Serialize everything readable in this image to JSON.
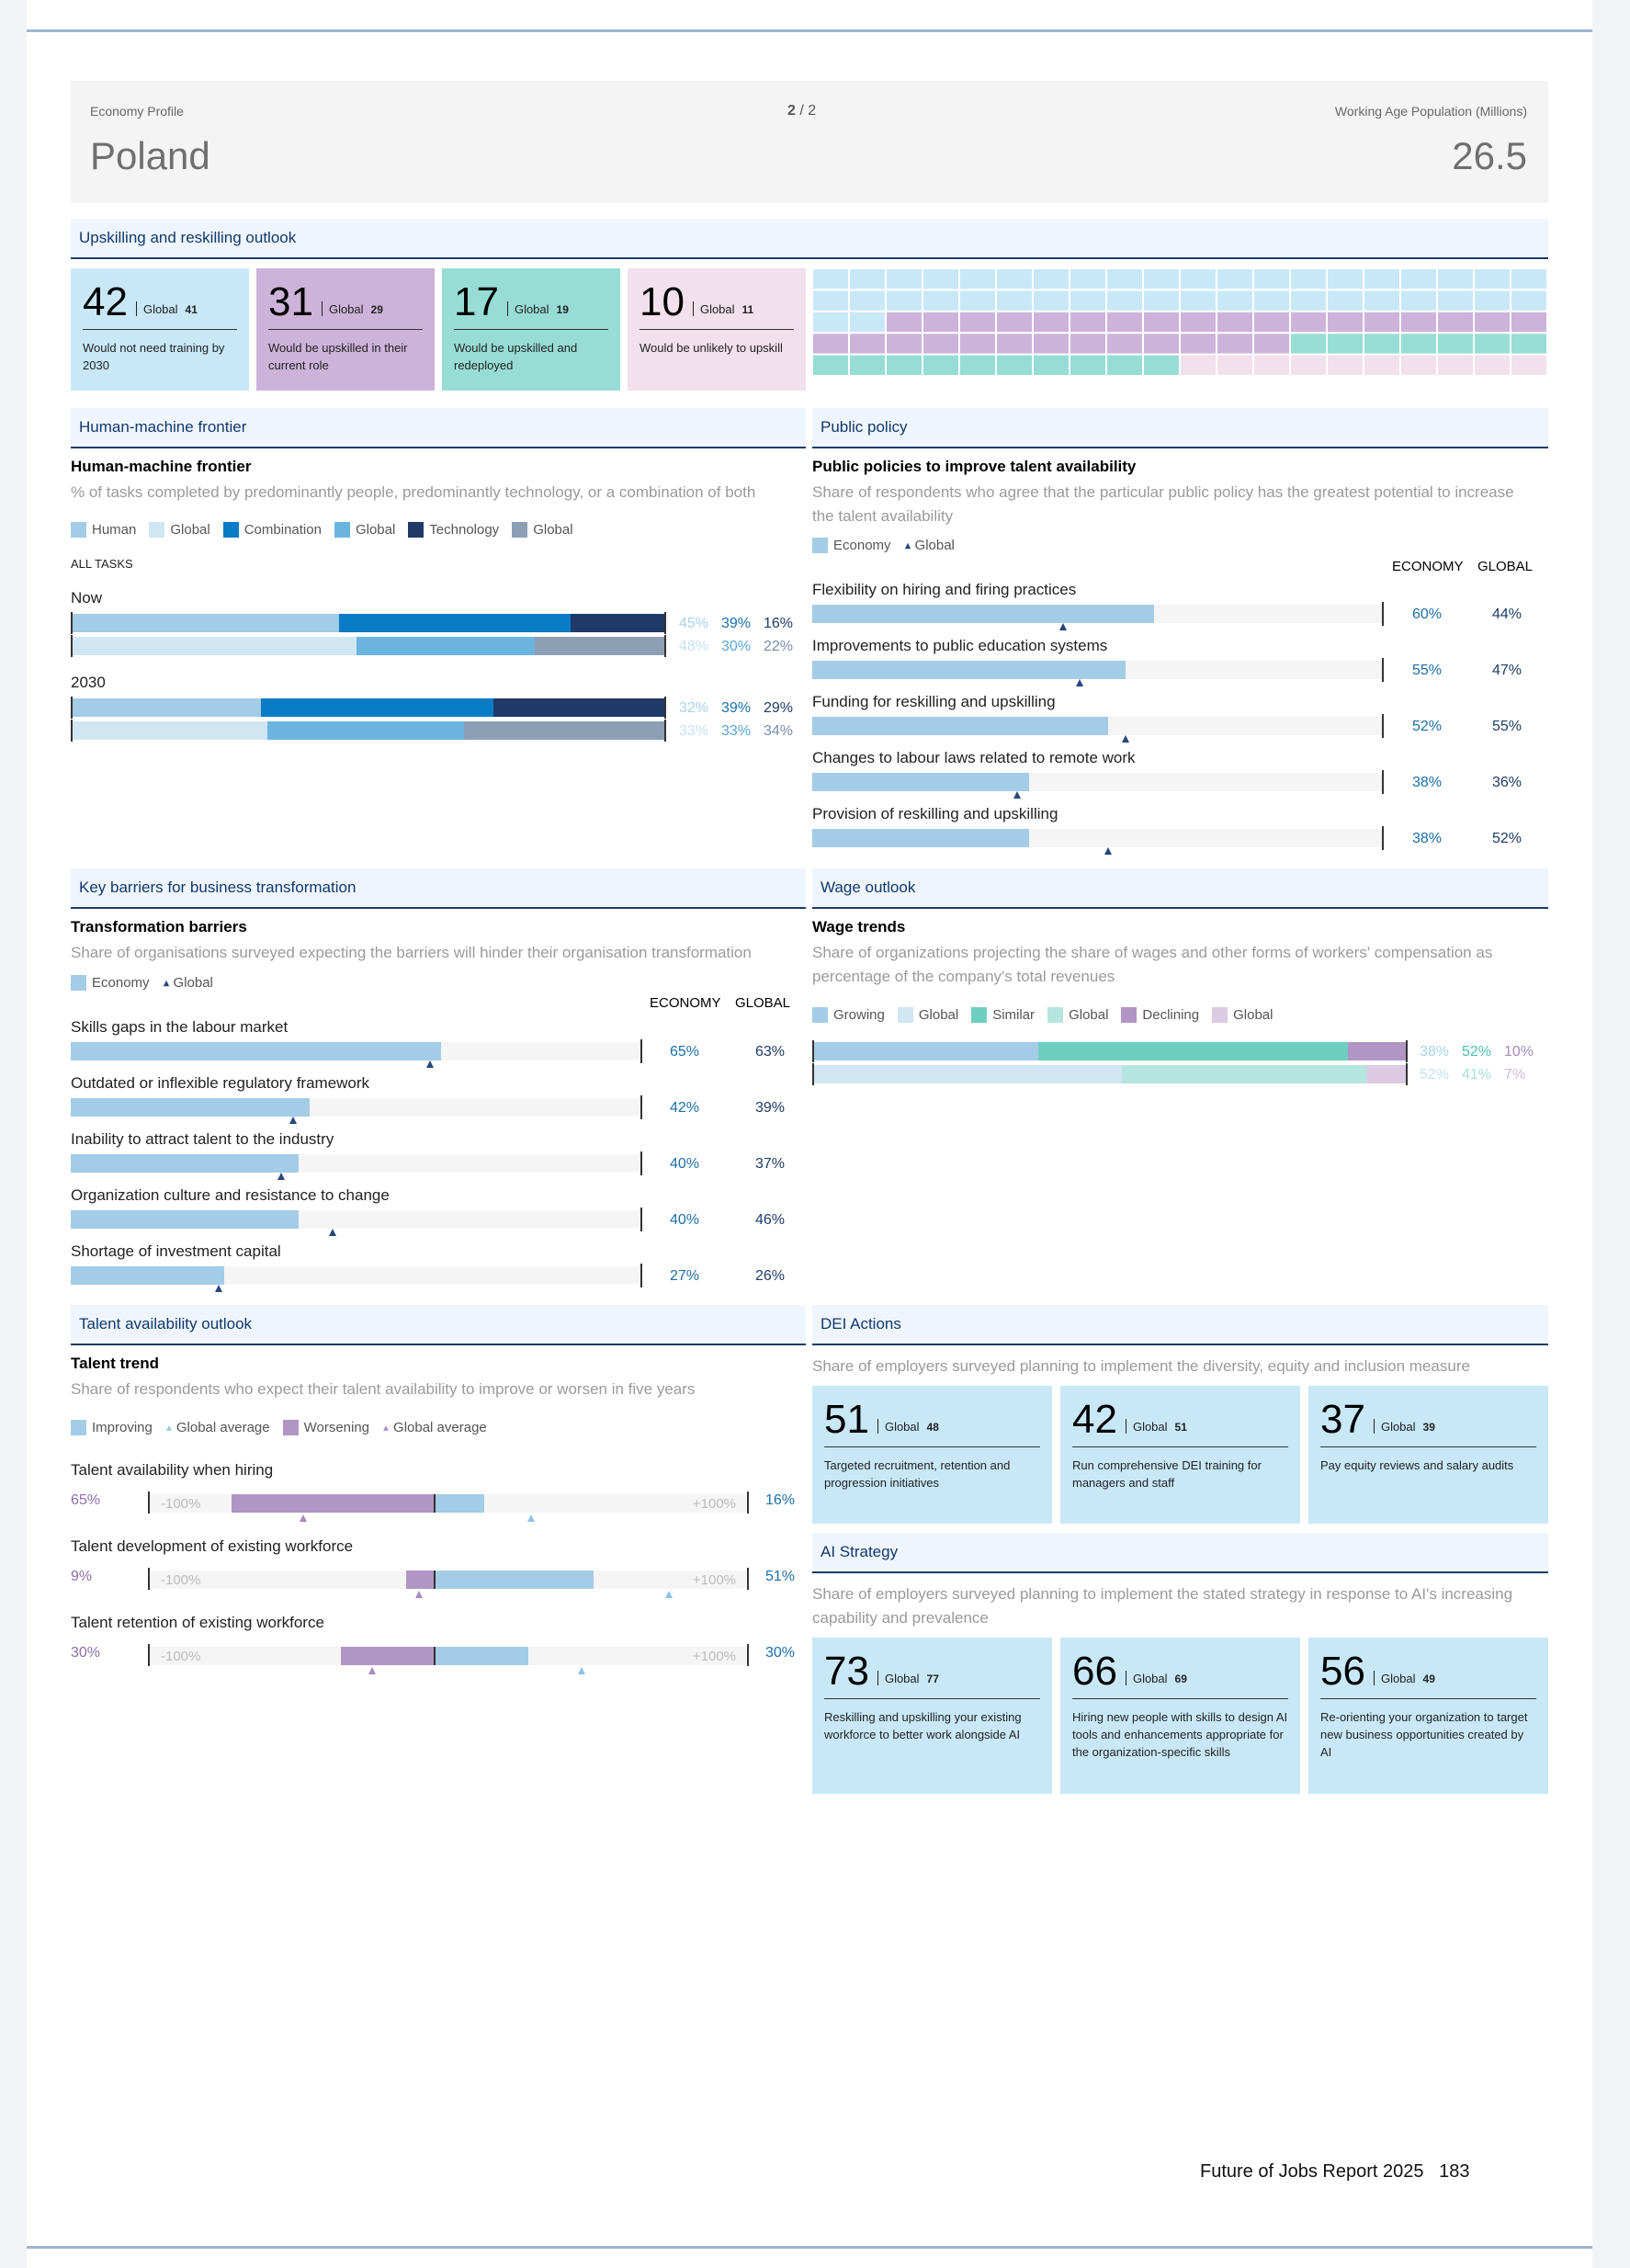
{
  "header": {
    "profile_label": "Economy Profile",
    "page_current": "2",
    "page_sep": "/",
    "page_total": "2",
    "country": "Poland",
    "pop_label": "Working Age Population (Millions)",
    "pop_value": "26.5"
  },
  "upskilling": {
    "title": "Upskilling and reskilling outlook",
    "cards": [
      {
        "value": "42",
        "global_label": "Global",
        "global_value": "41",
        "text": "Would not need training by 2030",
        "color": "#c8e8f8"
      },
      {
        "value": "31",
        "global_label": "Global",
        "global_value": "29",
        "text": "Would be upskilled in their current role",
        "color": "#cdb3da"
      },
      {
        "value": "17",
        "global_label": "Global",
        "global_value": "19",
        "text": "Would be upskilled and redeployed",
        "color": "#97ddd5"
      },
      {
        "value": "10",
        "global_label": "Global",
        "global_value": "11",
        "text": "Would be unlikely to upskill",
        "color": "#f2e0ec"
      }
    ]
  },
  "hmf": {
    "section": "Human-machine frontier",
    "title": "Human-machine frontier",
    "subtitle": "% of tasks completed by predominantly people, predominantly technology, or a combination of both",
    "legend": [
      {
        "label": "Human",
        "color": "#a3cce6"
      },
      {
        "label": "Global",
        "color": "#d1e6f3"
      },
      {
        "label": "Combination",
        "color": "#0a7bc7"
      },
      {
        "label": "Global",
        "color": "#6ab5e0"
      },
      {
        "label": "Technology",
        "color": "#1f3a68"
      },
      {
        "label": "Global",
        "color": "#8c9fb5"
      }
    ],
    "all_tasks": "ALL TASKS",
    "now_label": "Now",
    "y2030_label": "2030",
    "rows": [
      {
        "values": [
          "45%",
          "39%",
          "16%"
        ],
        "fracs": [
          0.45,
          0.39,
          0.16
        ],
        "colors": [
          "#a3cce6",
          "#0a7bc7",
          "#1f3a68"
        ],
        "vcolors": [
          "#a8d2ea",
          "#1d6fa8",
          "#1e3b68"
        ]
      },
      {
        "values": [
          "48%",
          "30%",
          "22%"
        ],
        "fracs": [
          0.48,
          0.3,
          0.22
        ],
        "colors": [
          "#d1e6f3",
          "#6ab5e0",
          "#8c9fb5"
        ],
        "vcolors": [
          "#c5e1f1",
          "#5aa6d6",
          "#7a8ea8"
        ]
      },
      {
        "values": [
          "32%",
          "39%",
          "29%"
        ],
        "fracs": [
          0.32,
          0.39,
          0.29
        ],
        "colors": [
          "#a3cce6",
          "#0a7bc7",
          "#1f3a68"
        ],
        "vcolors": [
          "#a8d2ea",
          "#1d6fa8",
          "#1e3b68"
        ]
      },
      {
        "values": [
          "33%",
          "33%",
          "34%"
        ],
        "fracs": [
          0.33,
          0.33,
          0.34
        ],
        "colors": [
          "#d1e6f3",
          "#6ab5e0",
          "#8c9fb5"
        ],
        "vcolors": [
          "#c5e1f1",
          "#5aa6d6",
          "#7a8ea8"
        ]
      }
    ]
  },
  "policy": {
    "section": "Public policy",
    "title": "Public policies to improve talent availability",
    "subtitle": "Share of respondents who agree that the particular public policy has the greatest potential to increase the talent availability",
    "legend_economy": "Economy",
    "legend_global": "Global",
    "col_economy": "ECONOMY",
    "col_global": "GLOBAL",
    "items": [
      {
        "label": "Flexibility on hiring and firing practices",
        "economy": "60%",
        "global": "44%",
        "e": 0.6,
        "g": 0.44
      },
      {
        "label": "Improvements to public education systems",
        "economy": "55%",
        "global": "47%",
        "e": 0.55,
        "g": 0.47
      },
      {
        "label": "Funding for reskilling and upskilling",
        "economy": "52%",
        "global": "55%",
        "e": 0.52,
        "g": 0.55
      },
      {
        "label": "Changes to labour laws related to remote work",
        "economy": "38%",
        "global": "36%",
        "e": 0.38,
        "g": 0.36
      },
      {
        "label": "Provision of reskilling and upskilling",
        "economy": "38%",
        "global": "52%",
        "e": 0.38,
        "g": 0.52
      }
    ]
  },
  "barriers": {
    "section": "Key barriers for business transformation",
    "title": "Transformation barriers",
    "subtitle": "Share of organisations surveyed expecting the barriers will hinder their organisation transformation",
    "legend_economy": "Economy",
    "legend_global": "Global",
    "col_economy": "ECONOMY",
    "col_global": "GLOBAL",
    "items": [
      {
        "label": "Skills gaps in the labour market",
        "economy": "65%",
        "global": "63%",
        "e": 0.65,
        "g": 0.63
      },
      {
        "label": "Outdated or inflexible regulatory framework",
        "economy": "42%",
        "global": "39%",
        "e": 0.42,
        "g": 0.39
      },
      {
        "label": "Inability to attract talent to the industry",
        "economy": "40%",
        "global": "37%",
        "e": 0.4,
        "g": 0.37
      },
      {
        "label": "Organization culture and resistance to change",
        "economy": "40%",
        "global": "46%",
        "e": 0.4,
        "g": 0.46
      },
      {
        "label": "Shortage of investment capital",
        "economy": "27%",
        "global": "26%",
        "e": 0.27,
        "g": 0.26
      }
    ]
  },
  "wage": {
    "section": "Wage outlook",
    "title": "Wage trends",
    "subtitle": "Share of organizations projecting the share of wages and other forms of workers' compensation as percentage of the company's total revenues",
    "legend": [
      {
        "label": "Growing",
        "color": "#a3cce6"
      },
      {
        "label": "Global",
        "color": "#d1e6f3"
      },
      {
        "label": "Similar",
        "color": "#6ecfc0"
      },
      {
        "label": "Global",
        "color": "#b4e6df"
      },
      {
        "label": "Declining",
        "color": "#b195c4"
      },
      {
        "label": "Global",
        "color": "#dccbe3"
      }
    ],
    "rows": [
      {
        "values": [
          "38%",
          "52%",
          "10%"
        ],
        "fracs": [
          0.38,
          0.52,
          0.1
        ],
        "colors": [
          "#a3cce6",
          "#6ecfc0",
          "#b195c4"
        ],
        "vcolors": [
          "#a8d2ea",
          "#4dbfae",
          "#a78bbb"
        ]
      },
      {
        "values": [
          "52%",
          "41%",
          "7%"
        ],
        "fracs": [
          0.52,
          0.41,
          0.07
        ],
        "colors": [
          "#d1e6f3",
          "#b4e6df",
          "#dccbe3"
        ],
        "vcolors": [
          "#c5e1f1",
          "#a8e0d8",
          "#cdb9d8"
        ]
      }
    ]
  },
  "talent": {
    "section": "Talent availability outlook",
    "title": "Talent trend",
    "subtitle": "Share of respondents who expect their talent availability to improve or worsen in five years",
    "legend": {
      "improving": "Improving",
      "global1": "Global average",
      "worsening": "Worsening",
      "global2": "Global average"
    },
    "neg_label": "-100%",
    "pos_label": "+100%",
    "items": [
      {
        "label": "Talent availability when hiring",
        "worsen": "65%",
        "improve": "16%",
        "w": 0.65,
        "i": 0.16,
        "gw": 0.42,
        "gi": 0.31
      },
      {
        "label": "Talent development of existing workforce",
        "worsen": "9%",
        "improve": "51%",
        "w": 0.09,
        "i": 0.51,
        "gw": 0.05,
        "gi": 0.75
      },
      {
        "label": "Talent retention of existing workforce",
        "worsen": "30%",
        "improve": "30%",
        "w": 0.3,
        "i": 0.3,
        "gw": 0.2,
        "gi": 0.47
      }
    ]
  },
  "dei": {
    "section": "DEI Actions",
    "subtitle": "Share of employers surveyed planning to implement the diversity, equity and inclusion measure",
    "cards": [
      {
        "value": "51",
        "global_label": "Global",
        "global_value": "48",
        "text": "Targeted recruitment, retention and progression initiatives"
      },
      {
        "value": "42",
        "global_label": "Global",
        "global_value": "51",
        "text": "Run comprehensive DEI training for managers and staff"
      },
      {
        "value": "37",
        "global_label": "Global",
        "global_value": "39",
        "text": "Pay equity reviews and salary audits"
      }
    ]
  },
  "ai": {
    "section": "AI Strategy",
    "subtitle": "Share of employers surveyed planning to implement the stated strategy in response to AI's increasing capability and prevalence",
    "cards": [
      {
        "value": "73",
        "global_label": "Global",
        "global_value": "77",
        "text": "Reskilling and upskilling your existing workforce to better work alongside AI"
      },
      {
        "value": "66",
        "global_label": "Global",
        "global_value": "69",
        "text": "Hiring new people with skills to design AI tools and enhancements appropriate for the organization-specific skills"
      },
      {
        "value": "56",
        "global_label": "Global",
        "global_value": "49",
        "text": "Re-orienting your organization to target new business opportunities created by AI"
      }
    ]
  },
  "footer": {
    "report": "Future of Jobs Report 2025",
    "page": "183"
  }
}
